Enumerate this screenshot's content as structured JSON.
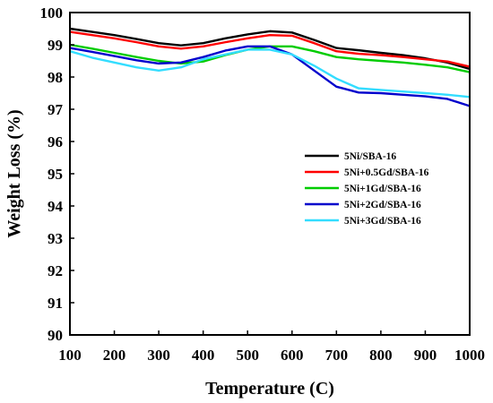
{
  "chart_data": {
    "type": "line",
    "xlabel": "Temperature (C)",
    "ylabel": "Weight Loss (%)",
    "xlim": [
      100,
      1000
    ],
    "ylim": [
      90,
      100
    ],
    "x_ticks": [
      100,
      200,
      300,
      400,
      500,
      600,
      700,
      800,
      900,
      1000
    ],
    "y_ticks": [
      90,
      91,
      92,
      93,
      94,
      95,
      96,
      97,
      98,
      99,
      100
    ],
    "grid": false,
    "legend_position": "center",
    "series": [
      {
        "name": "5Ni/SBA-16",
        "color": "#000000",
        "points": [
          [
            100,
            99.5
          ],
          [
            150,
            99.4
          ],
          [
            200,
            99.3
          ],
          [
            250,
            99.18
          ],
          [
            300,
            99.05
          ],
          [
            350,
            98.98
          ],
          [
            400,
            99.05
          ],
          [
            450,
            99.2
          ],
          [
            500,
            99.32
          ],
          [
            550,
            99.42
          ],
          [
            600,
            99.38
          ],
          [
            650,
            99.15
          ],
          [
            700,
            98.9
          ],
          [
            750,
            98.83
          ],
          [
            800,
            98.75
          ],
          [
            850,
            98.68
          ],
          [
            900,
            98.58
          ],
          [
            950,
            98.45
          ],
          [
            1000,
            98.25
          ]
        ]
      },
      {
        "name": "5Ni+0.5Gd/SBA-16",
        "color": "#ff0000",
        "points": [
          [
            100,
            99.4
          ],
          [
            150,
            99.3
          ],
          [
            200,
            99.2
          ],
          [
            250,
            99.08
          ],
          [
            300,
            98.95
          ],
          [
            350,
            98.88
          ],
          [
            400,
            98.95
          ],
          [
            450,
            99.08
          ],
          [
            500,
            99.2
          ],
          [
            550,
            99.3
          ],
          [
            600,
            99.28
          ],
          [
            650,
            99.05
          ],
          [
            700,
            98.8
          ],
          [
            750,
            98.72
          ],
          [
            800,
            98.68
          ],
          [
            850,
            98.62
          ],
          [
            900,
            98.55
          ],
          [
            950,
            98.48
          ],
          [
            1000,
            98.32
          ]
        ]
      },
      {
        "name": "5Ni+1Gd/SBA-16",
        "color": "#00cc00",
        "points": [
          [
            100,
            99.0
          ],
          [
            150,
            98.88
          ],
          [
            200,
            98.75
          ],
          [
            250,
            98.62
          ],
          [
            300,
            98.5
          ],
          [
            350,
            98.42
          ],
          [
            400,
            98.48
          ],
          [
            450,
            98.68
          ],
          [
            500,
            98.85
          ],
          [
            550,
            98.95
          ],
          [
            600,
            98.95
          ],
          [
            650,
            98.8
          ],
          [
            700,
            98.62
          ],
          [
            750,
            98.55
          ],
          [
            800,
            98.5
          ],
          [
            850,
            98.45
          ],
          [
            900,
            98.38
          ],
          [
            950,
            98.3
          ],
          [
            1000,
            98.15
          ]
        ]
      },
      {
        "name": "5Ni+2Gd/SBA-16",
        "color": "#0000cc",
        "points": [
          [
            100,
            98.9
          ],
          [
            150,
            98.78
          ],
          [
            200,
            98.65
          ],
          [
            250,
            98.52
          ],
          [
            300,
            98.42
          ],
          [
            350,
            98.45
          ],
          [
            400,
            98.62
          ],
          [
            450,
            98.82
          ],
          [
            500,
            98.95
          ],
          [
            550,
            98.95
          ],
          [
            600,
            98.7
          ],
          [
            650,
            98.2
          ],
          [
            700,
            97.7
          ],
          [
            750,
            97.52
          ],
          [
            800,
            97.5
          ],
          [
            850,
            97.45
          ],
          [
            900,
            97.4
          ],
          [
            950,
            97.32
          ],
          [
            1000,
            97.1
          ]
        ]
      },
      {
        "name": "5Ni+3Gd/SBA-16",
        "color": "#33ddff",
        "points": [
          [
            100,
            98.8
          ],
          [
            150,
            98.6
          ],
          [
            200,
            98.45
          ],
          [
            250,
            98.3
          ],
          [
            300,
            98.2
          ],
          [
            350,
            98.3
          ],
          [
            400,
            98.55
          ],
          [
            450,
            98.7
          ],
          [
            500,
            98.85
          ],
          [
            550,
            98.85
          ],
          [
            600,
            98.7
          ],
          [
            650,
            98.35
          ],
          [
            700,
            97.95
          ],
          [
            750,
            97.65
          ],
          [
            800,
            97.6
          ],
          [
            850,
            97.55
          ],
          [
            900,
            97.5
          ],
          [
            950,
            97.45
          ],
          [
            1000,
            97.38
          ]
        ]
      }
    ]
  }
}
